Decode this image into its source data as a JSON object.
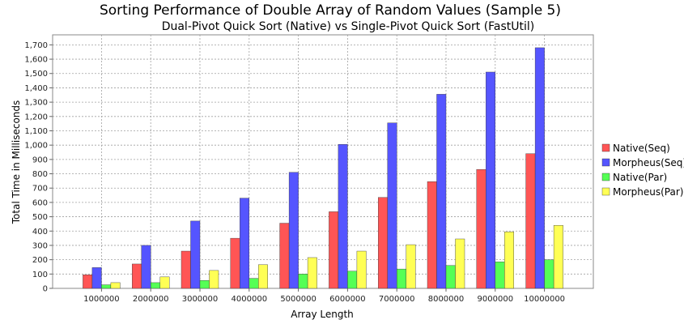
{
  "chart_data": {
    "type": "bar",
    "title": "Sorting Performance of Double Array of Random Values (Sample 5)",
    "subtitle": "Dual-Pivot Quick Sort (Native) vs Single-Pivot Quick Sort (FastUtil)",
    "xlabel": "Array Length",
    "ylabel": "Total Time in Milliseconds",
    "ylim": [
      0,
      1770
    ],
    "yticks": [
      0,
      100,
      200,
      300,
      400,
      500,
      600,
      700,
      800,
      900,
      1000,
      1100,
      1200,
      1300,
      1400,
      1500,
      1600,
      1700
    ],
    "ytick_labels": [
      "0",
      "100",
      "200",
      "300",
      "400",
      "500",
      "600",
      "700",
      "800",
      "900",
      "1,000",
      "1,100",
      "1,200",
      "1,300",
      "1,400",
      "1,500",
      "1,600",
      "1,700"
    ],
    "grid": true,
    "legend_position": "right",
    "categories": [
      "1000000",
      "2000000",
      "3000000",
      "4000000",
      "5000000",
      "6000000",
      "7000000",
      "8000000",
      "9000000",
      "10000000"
    ],
    "series": [
      {
        "name": "Native(Seq)",
        "color": "#ff5555",
        "values": [
          95,
          170,
          260,
          350,
          455,
          535,
          635,
          745,
          830,
          940
        ]
      },
      {
        "name": "Morpheus(Seq)",
        "color": "#5555ff",
        "values": [
          145,
          300,
          470,
          630,
          810,
          1005,
          1155,
          1355,
          1510,
          1680
        ]
      },
      {
        "name": "Native(Par)",
        "color": "#55ff55",
        "values": [
          25,
          40,
          55,
          70,
          100,
          120,
          135,
          160,
          185,
          200
        ]
      },
      {
        "name": "Morpheus(Par)",
        "color": "#ffff55",
        "values": [
          40,
          80,
          125,
          165,
          215,
          260,
          305,
          345,
          395,
          440
        ]
      }
    ]
  }
}
